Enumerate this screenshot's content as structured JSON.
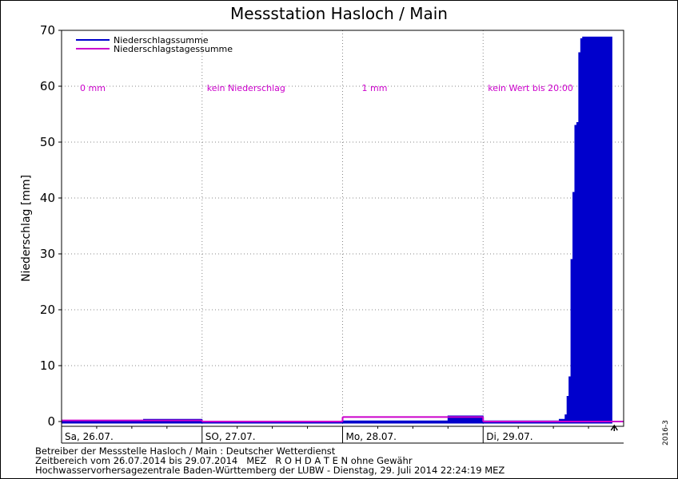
{
  "colors": {
    "sum": "#0000cc",
    "daily": "#cc00cc",
    "grid": "#888888"
  },
  "legend": {
    "sum_label": "Niederschlagssumme",
    "daily_label": "Niederschlagstagessumme"
  },
  "day_totals": [
    "0 mm",
    "kein Niederschlag",
    "1 mm",
    "kein Wert bis 20:00"
  ],
  "footer": {
    "line1": "Betreiber der Messstelle Hasloch / Main : Deutscher Wetterdienst",
    "line2": "Zeitbereich vom 26.07.2014 bis 29.07.2014   MEZ   R O H D A T E N ohne Gewähr",
    "line3": "Hochwasservorhersagezentrale Baden-Württemberg der LUBW - Dienstag, 29. Juli 2014 22:24:19 MEZ"
  },
  "side_id": "2016-3",
  "chart_data": {
    "type": "area",
    "title": "Messstation Hasloch / Main",
    "ylabel": "Niederschlag [mm]",
    "xlabel": "",
    "ylim": [
      0,
      70
    ],
    "yticks": [
      0,
      10,
      20,
      30,
      40,
      50,
      60,
      70
    ],
    "xlim": [
      "2014-07-26T00:00",
      "2014-07-30T00:00"
    ],
    "days": [
      "Sa, 26.07.",
      "SO, 27.07.",
      "Mo, 28.07.",
      "Di, 29.07."
    ],
    "grid": true,
    "legend_position": "top-left",
    "series": [
      {
        "name": "Niederschlagssumme",
        "x": [
          "2014-07-26T00:00",
          "2014-07-26T14:00",
          "2014-07-27T00:00",
          "2014-07-27T23:00",
          "2014-07-28T00:00",
          "2014-07-28T18:00",
          "2014-07-29T00:00",
          "2014-07-29T12:00",
          "2014-07-29T13:00",
          "2014-07-29T14:00",
          "2014-07-29T14:20",
          "2014-07-29T14:40",
          "2014-07-29T15:00",
          "2014-07-29T15:20",
          "2014-07-29T15:40",
          "2014-07-29T16:00",
          "2014-07-29T16:20",
          "2014-07-29T16:40",
          "2014-07-29T17:00",
          "2014-07-29T18:00",
          "2014-07-29T20:00",
          "2014-07-29T22:00"
        ],
        "values": [
          0.2,
          0.4,
          0,
          0,
          0.1,
          1.0,
          0.1,
          0.1,
          0.4,
          1.2,
          4.5,
          8.0,
          29,
          41,
          53,
          53.5,
          66,
          68.5,
          68.8,
          68.8,
          68.8,
          68.8
        ]
      },
      {
        "name": "Niederschlagstagessumme",
        "x": [
          "2014-07-26T00:00",
          "2014-07-27T00:00",
          "2014-07-28T00:00",
          "2014-07-29T00:00"
        ],
        "values": [
          0.2,
          0.0,
          0.8,
          0.0
        ]
      }
    ]
  }
}
